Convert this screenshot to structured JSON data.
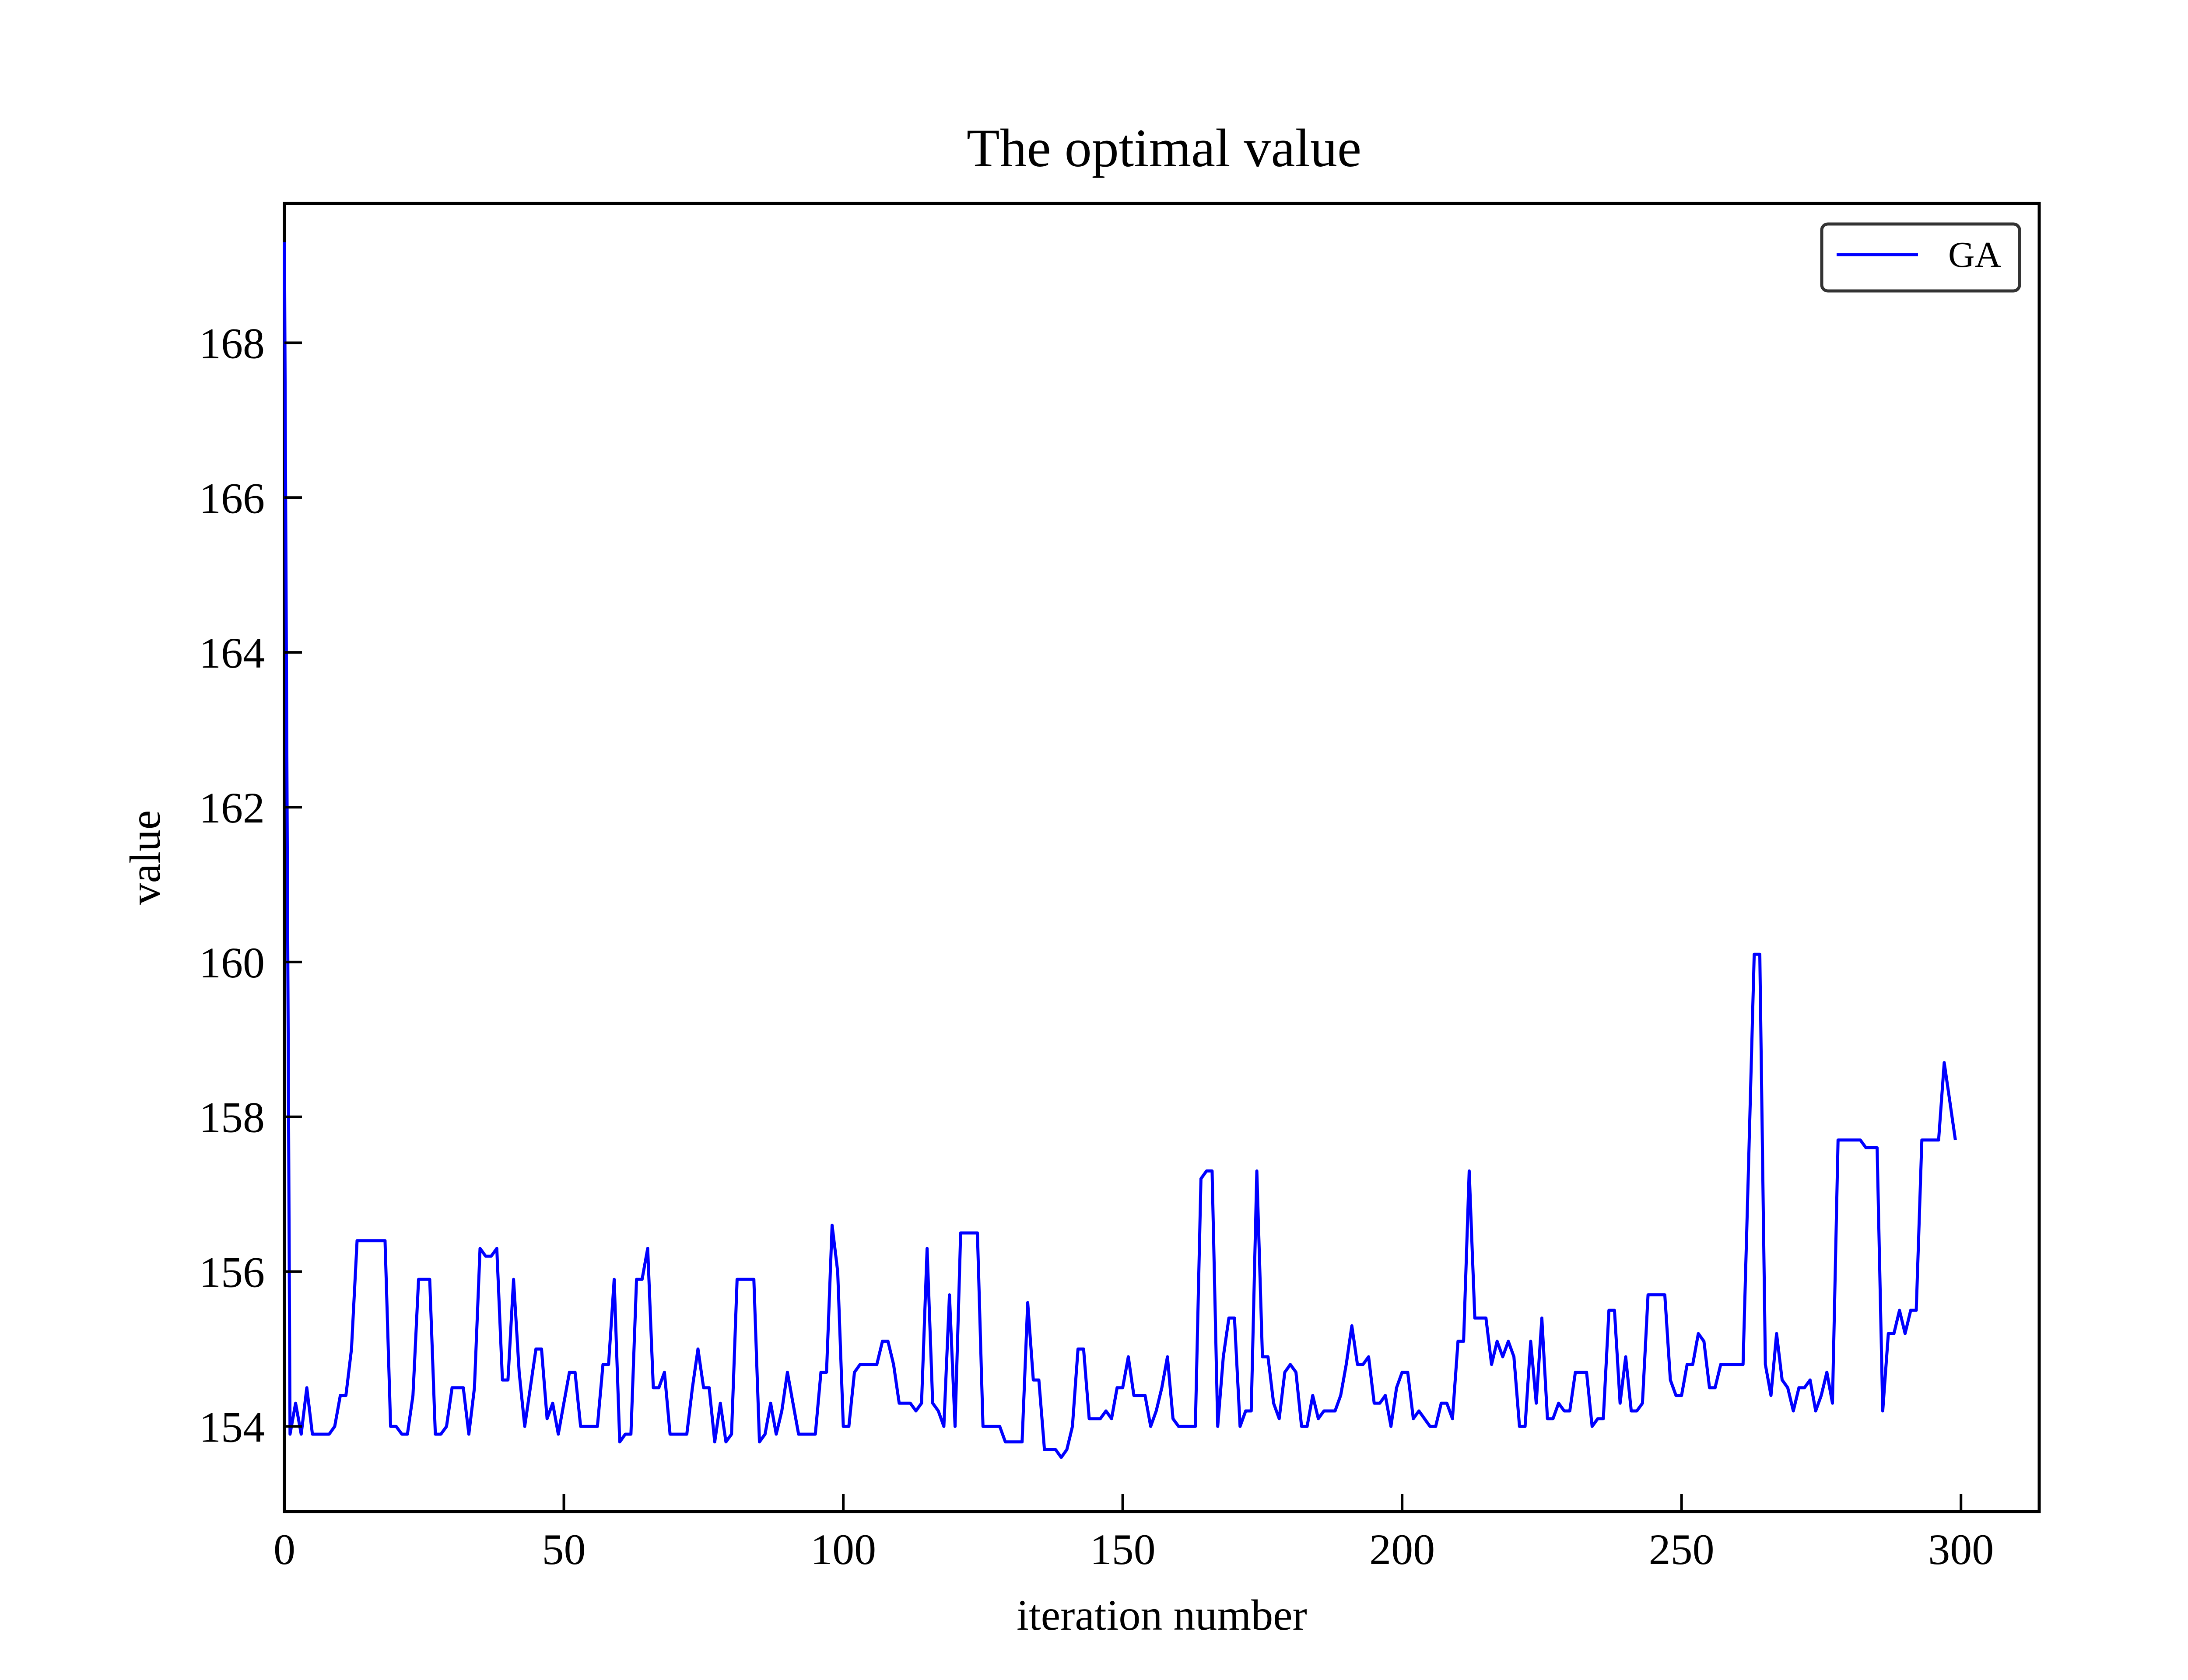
{
  "chart_data": {
    "type": "line",
    "title": "The optimal value",
    "xlabel": "iteration number",
    "ylabel": "value",
    "xlim": [
      0,
      314
    ],
    "ylim": [
      152.9,
      169.8
    ],
    "x_ticks": [
      0,
      50,
      100,
      150,
      200,
      250,
      300
    ],
    "y_ticks": [
      154,
      156,
      158,
      160,
      162,
      164,
      166,
      168
    ],
    "grid": false,
    "legend_position": "top-right",
    "series": [
      {
        "name": "GA",
        "color": "#0000ff",
        "values": [
          169.3,
          153.9,
          154.3,
          153.9,
          154.5,
          153.9,
          153.9,
          153.9,
          153.9,
          154.0,
          154.4,
          154.4,
          155.0,
          156.4,
          156.4,
          156.4,
          156.4,
          156.4,
          156.4,
          154.0,
          154.0,
          153.9,
          153.9,
          154.4,
          155.9,
          155.9,
          155.9,
          153.9,
          153.9,
          154.0,
          154.5,
          154.5,
          154.5,
          153.9,
          154.5,
          156.3,
          156.2,
          156.2,
          156.3,
          154.6,
          154.6,
          155.9,
          154.7,
          154.0,
          154.5,
          155.0,
          155.0,
          154.1,
          154.3,
          153.9,
          154.3,
          154.7,
          154.7,
          154.0,
          154.0,
          154.0,
          154.0,
          154.8,
          154.8,
          155.9,
          153.8,
          153.9,
          153.9,
          155.9,
          155.9,
          156.3,
          154.5,
          154.5,
          154.7,
          153.9,
          153.9,
          153.9,
          153.9,
          154.5,
          155.0,
          154.5,
          154.5,
          153.8,
          154.3,
          153.8,
          153.9,
          155.9,
          155.9,
          155.9,
          155.9,
          153.8,
          153.9,
          154.3,
          153.9,
          154.2,
          154.7,
          154.3,
          153.9,
          153.9,
          153.9,
          153.9,
          154.7,
          154.7,
          156.6,
          156.0,
          154.0,
          154.0,
          154.7,
          154.8,
          154.8,
          154.8,
          154.8,
          155.1,
          155.1,
          154.8,
          154.3,
          154.3,
          154.3,
          154.2,
          154.3,
          156.3,
          154.3,
          154.2,
          154.0,
          155.7,
          154.0,
          156.5,
          156.5,
          156.5,
          156.5,
          154.0,
          154.0,
          154.0,
          154.0,
          153.8,
          153.8,
          153.8,
          153.8,
          155.6,
          154.6,
          154.6,
          153.7,
          153.7,
          153.7,
          153.6,
          153.7,
          154.0,
          155.0,
          155.0,
          154.1,
          154.1,
          154.1,
          154.2,
          154.1,
          154.5,
          154.5,
          154.9,
          154.4,
          154.4,
          154.4,
          154.0,
          154.2,
          154.5,
          154.9,
          154.1,
          154.0,
          154.0,
          154.0,
          154.0,
          157.2,
          157.3,
          157.3,
          154.0,
          154.9,
          155.4,
          155.4,
          154.0,
          154.2,
          154.2,
          157.3,
          154.9,
          154.9,
          154.3,
          154.1,
          154.7,
          154.8,
          154.7,
          154.0,
          154.0,
          154.4,
          154.1,
          154.2,
          154.2,
          154.2,
          154.4,
          154.8,
          155.3,
          154.8,
          154.8,
          154.9,
          154.3,
          154.3,
          154.4,
          154.0,
          154.5,
          154.7,
          154.7,
          154.1,
          154.2,
          154.1,
          154.0,
          154.0,
          154.3,
          154.3,
          154.1,
          155.1,
          155.1,
          157.3,
          155.4,
          155.4,
          155.4,
          154.8,
          155.1,
          154.9,
          155.1,
          154.9,
          154.0,
          154.0,
          155.1,
          154.3,
          155.4,
          154.1,
          154.1,
          154.3,
          154.2,
          154.2,
          154.7,
          154.7,
          154.7,
          154.0,
          154.1,
          154.1,
          155.5,
          155.5,
          154.3,
          154.9,
          154.2,
          154.2,
          154.3,
          155.7,
          155.7,
          155.7,
          155.7,
          154.6,
          154.4,
          154.4,
          154.8,
          154.8,
          155.2,
          155.1,
          154.5,
          154.5,
          154.8,
          154.8,
          154.8,
          154.8,
          154.8,
          157.4,
          160.1,
          160.1,
          154.8,
          154.4,
          155.2,
          154.6,
          154.5,
          154.2,
          154.5,
          154.5,
          154.6,
          154.2,
          154.4,
          154.7,
          154.3,
          157.7,
          157.7,
          157.7,
          157.7,
          157.7,
          157.6,
          157.6,
          157.6,
          154.2,
          155.2,
          155.2,
          155.5,
          155.2,
          155.5,
          155.5,
          157.7,
          157.7,
          157.7,
          157.7,
          158.7,
          158.2,
          157.7
        ]
      }
    ]
  }
}
